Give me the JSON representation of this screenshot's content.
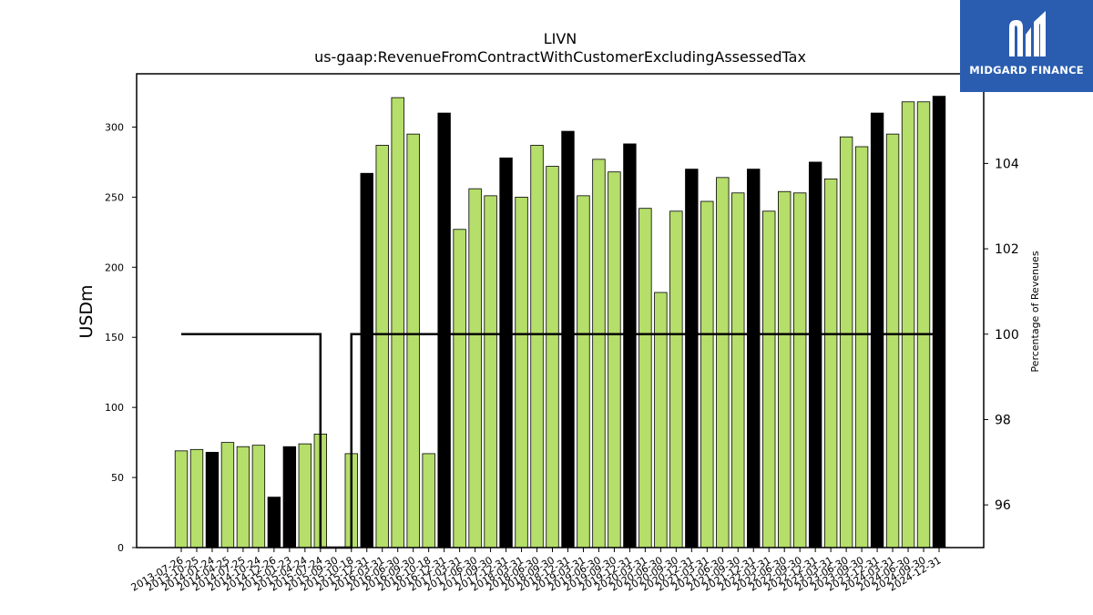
{
  "chart_data": {
    "type": "bar",
    "title": "LIVN",
    "subtitle": "us-gaap:RevenueFromContractWithCustomerExcludingAssessedTax",
    "ylabel": "USDm",
    "y2label": "Percentage of Revenues",
    "ylim": [
      0,
      338
    ],
    "y2lim": [
      95.0,
      106.1
    ],
    "yticks": [
      0,
      50,
      100,
      150,
      200,
      250,
      300
    ],
    "y2ticks": [
      96,
      98,
      100,
      102,
      104
    ],
    "grid": false,
    "colors": {
      "quarter": "#b5de6a",
      "annual": "#000000",
      "line": "#000000"
    },
    "categories": [
      "2013-07-26",
      "2013-10-25",
      "2014-01-24",
      "2014-04-25",
      "2014-07-25",
      "2014-10-24",
      "2014-12-26",
      "2015-01-23",
      "2015-04-24",
      "2015-07-24",
      "2015-09-30",
      "2015-10-18",
      "2015-12-31",
      "2016-03-31",
      "2016-06-30",
      "2016-09-30",
      "2016-10-18",
      "2016-12-31",
      "2017-03-31",
      "2017-06-30",
      "2017-09-30",
      "2017-12-31",
      "2018-03-31",
      "2018-06-30",
      "2018-09-30",
      "2018-12-31",
      "2019-03-31",
      "2019-06-30",
      "2019-09-30",
      "2019-12-31",
      "2020-03-31",
      "2020-06-30",
      "2020-09-30",
      "2020-12-31",
      "2021-03-31",
      "2021-06-30",
      "2021-09-30",
      "2021-12-31",
      "2022-03-31",
      "2022-06-30",
      "2022-09-30",
      "2022-12-31",
      "2023-03-31",
      "2023-06-30",
      "2023-09-30",
      "2023-12-31",
      "2024-03-31",
      "2024-06-30",
      "2024-09-30",
      "2024-12-31"
    ],
    "values": [
      69,
      70,
      68,
      75,
      72,
      73,
      36,
      72,
      74,
      81,
      null,
      67,
      267,
      287,
      321,
      295,
      67,
      310,
      227,
      256,
      251,
      278,
      250,
      287,
      272,
      297,
      251,
      277,
      268,
      288,
      242,
      182,
      240,
      270,
      247,
      264,
      253,
      270,
      240,
      254,
      253,
      275,
      263,
      293,
      286,
      310,
      295,
      318,
      318,
      322
    ],
    "annual": [
      false,
      false,
      true,
      false,
      false,
      false,
      true,
      true,
      false,
      false,
      false,
      false,
      true,
      false,
      false,
      false,
      false,
      true,
      false,
      false,
      false,
      true,
      false,
      false,
      false,
      true,
      false,
      false,
      false,
      true,
      false,
      false,
      false,
      true,
      false,
      false,
      false,
      true,
      false,
      false,
      false,
      true,
      false,
      false,
      false,
      true,
      false,
      false,
      false,
      true
    ],
    "percentage_line": [
      {
        "x": "2013-07-26",
        "y": 100
      },
      {
        "x": "2015-07-24",
        "y": 100
      },
      {
        "x": "2015-07-24",
        "y": 95.0
      },
      {
        "x": "2015-10-18",
        "y": 95.0
      },
      {
        "x": "2015-10-18",
        "y": 100
      },
      {
        "x": "2024-12-31",
        "y": 100
      }
    ]
  },
  "logo": {
    "text": "MIDGARD FINANCE",
    "icon": "midgard-m-icon"
  }
}
